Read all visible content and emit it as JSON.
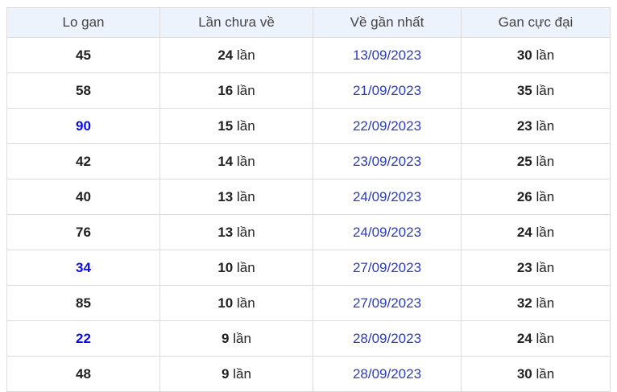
{
  "colors": {
    "header_bg": "#edf3fc",
    "border": "#dcdcdc",
    "text": "#212121",
    "header_text": "#444444",
    "date_link_blue": "#2b3cb8",
    "highlight_blue": "#0b0be6"
  },
  "labels": {
    "lan": "lần"
  },
  "table": {
    "headers": [
      "Lo gan",
      "Lần chưa về",
      "Về gần nhất",
      "Gan cực đại"
    ],
    "rows": [
      {
        "lo_gan": "45",
        "variant": "normal",
        "lan_chua_ve": "24",
        "ve_gan_nhat": "13/09/2023",
        "gan_cuc_dai": "30"
      },
      {
        "lo_gan": "58",
        "variant": "normal",
        "lan_chua_ve": "16",
        "ve_gan_nhat": "21/09/2023",
        "gan_cuc_dai": "35"
      },
      {
        "lo_gan": "90",
        "variant": "blue",
        "lan_chua_ve": "15",
        "ve_gan_nhat": "22/09/2023",
        "gan_cuc_dai": "23"
      },
      {
        "lo_gan": "42",
        "variant": "normal",
        "lan_chua_ve": "14",
        "ve_gan_nhat": "23/09/2023",
        "gan_cuc_dai": "25"
      },
      {
        "lo_gan": "40",
        "variant": "normal",
        "lan_chua_ve": "13",
        "ve_gan_nhat": "24/09/2023",
        "gan_cuc_dai": "26"
      },
      {
        "lo_gan": "76",
        "variant": "normal",
        "lan_chua_ve": "13",
        "ve_gan_nhat": "24/09/2023",
        "gan_cuc_dai": "24"
      },
      {
        "lo_gan": "34",
        "variant": "blue",
        "lan_chua_ve": "10",
        "ve_gan_nhat": "27/09/2023",
        "gan_cuc_dai": "23"
      },
      {
        "lo_gan": "85",
        "variant": "normal",
        "lan_chua_ve": "10",
        "ve_gan_nhat": "27/09/2023",
        "gan_cuc_dai": "32"
      },
      {
        "lo_gan": "22",
        "variant": "blue",
        "lan_chua_ve": "9",
        "ve_gan_nhat": "28/09/2023",
        "gan_cuc_dai": "24"
      },
      {
        "lo_gan": "48",
        "variant": "normal",
        "lan_chua_ve": "9",
        "ve_gan_nhat": "28/09/2023",
        "gan_cuc_dai": "30"
      }
    ]
  }
}
